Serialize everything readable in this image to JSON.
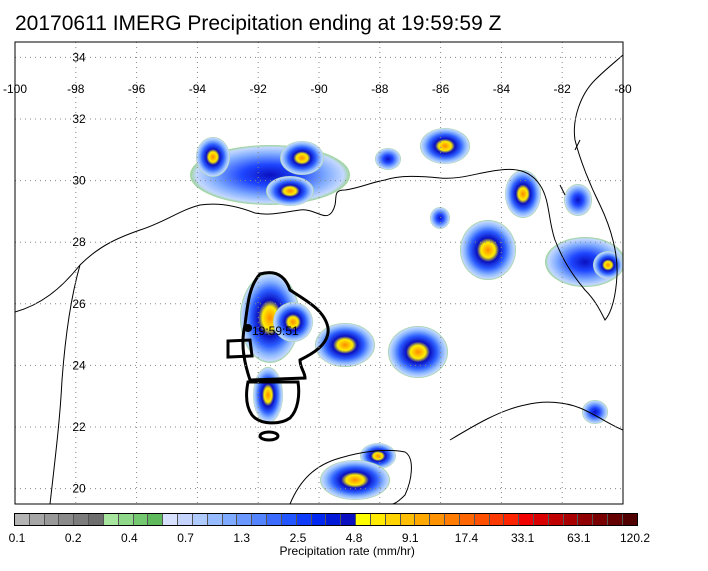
{
  "title": "20170611 IMERG Precipitation ending at 19:59:59 Z",
  "map": {
    "lon_ticks": [
      "-100",
      "-98",
      "-96",
      "-94",
      "-92",
      "-90",
      "-88",
      "-86",
      "-84",
      "-82",
      "-80"
    ],
    "lat_ticks": [
      "34",
      "32",
      "30",
      "28",
      "26",
      "24",
      "22",
      "20"
    ],
    "lon_range": [
      -100,
      -80
    ],
    "lat_range": [
      19.5,
      34.5
    ],
    "storm_time_label": "19:59:51",
    "grid": "dotted"
  },
  "colorbar": {
    "title": "Precipitation rate (mm/hr)",
    "labels": [
      "0.1",
      "0.2",
      "0.4",
      "0.7",
      "1.3",
      "2.5",
      "4.8",
      "9.1",
      "17.4",
      "33.1",
      "63.1",
      "120.2"
    ],
    "colors": [
      "#b4b4b4",
      "#a6a6a6",
      "#989898",
      "#8a8a8a",
      "#7c7c7c",
      "#6e6e6e",
      "#a8e6a0",
      "#8fd88a",
      "#74c870",
      "#5fba5c",
      "#d8e0ff",
      "#c4d4ff",
      "#aecaff",
      "#96bcff",
      "#7eaaff",
      "#6a98ff",
      "#5484ff",
      "#3c6cff",
      "#2456ff",
      "#103cff",
      "#0028f0",
      "#0018d8",
      "#0a10c0",
      "#ffff00",
      "#ffea00",
      "#ffd400",
      "#ffbe00",
      "#ffa800",
      "#ff9200",
      "#ff7c00",
      "#ff6600",
      "#ff5000",
      "#ff3a00",
      "#ff2400",
      "#f00000",
      "#d80000",
      "#c00000",
      "#a80000",
      "#900000",
      "#780000",
      "#640000",
      "#500000"
    ]
  },
  "colors": {
    "land_outline": "#000000",
    "grid": "#888888",
    "frame": "#000000"
  }
}
